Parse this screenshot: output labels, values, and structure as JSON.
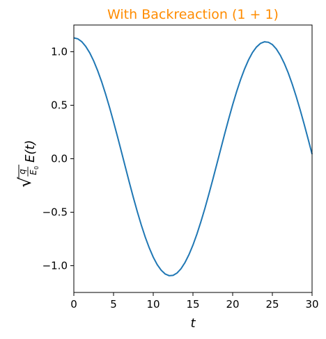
{
  "chart_data": {
    "type": "line",
    "title": "With Backreaction (1 + 1)",
    "title_color": "#ff8c00",
    "xlabel": "t",
    "ylabel": "√(q/E₀) E(t)",
    "ylabel_parts": {
      "sqrt": "√",
      "num": "q",
      "den_main": "E",
      "den_sub": "0",
      "func": "E(t)"
    },
    "xlim": [
      0,
      30
    ],
    "ylim": [
      -1.25,
      1.25
    ],
    "xticks": [
      0,
      5,
      10,
      15,
      20,
      25,
      30
    ],
    "xtick_labels": [
      "0",
      "5",
      "10",
      "15",
      "20",
      "25",
      "30"
    ],
    "yticks": [
      1.0,
      0.5,
      0.0,
      -0.5,
      -1.0
    ],
    "ytick_labels": [
      "1.0",
      "0.5",
      "0.0",
      "−0.5",
      "−1.0"
    ],
    "grid": false,
    "series": [
      {
        "color": "#1f77b4",
        "x": [
          0,
          0.5,
          1,
          1.5,
          2,
          2.5,
          3,
          3.5,
          4,
          4.5,
          5,
          5.5,
          6,
          6.5,
          7,
          7.5,
          8,
          8.5,
          9,
          9.5,
          10,
          10.5,
          11,
          11.5,
          12,
          12.5,
          13,
          13.5,
          14,
          14.5,
          15,
          15.5,
          16,
          16.5,
          17,
          17.5,
          18,
          18.5,
          19,
          19.5,
          20,
          20.5,
          21,
          21.5,
          22,
          22.5,
          23,
          23.5,
          24,
          24.5,
          25,
          25.5,
          26,
          26.5,
          27,
          27.5,
          28,
          28.5,
          29,
          29.5,
          30
        ],
        "y": [
          1.13,
          1.121,
          1.094,
          1.05,
          0.99,
          0.914,
          0.823,
          0.72,
          0.604,
          0.479,
          0.345,
          0.206,
          0.063,
          -0.081,
          -0.225,
          -0.364,
          -0.497,
          -0.621,
          -0.734,
          -0.834,
          -0.92,
          -0.99,
          -1.042,
          -1.077,
          -1.093,
          -1.09,
          -1.068,
          -1.028,
          -0.97,
          -0.896,
          -0.807,
          -0.704,
          -0.589,
          -0.465,
          -0.332,
          -0.194,
          -0.052,
          0.091,
          0.234,
          0.372,
          0.505,
          0.628,
          0.74,
          0.839,
          0.924,
          0.993,
          1.044,
          1.078,
          1.093,
          1.089,
          1.067,
          1.026,
          0.967,
          0.892,
          0.802,
          0.698,
          0.582,
          0.457,
          0.324,
          0.185,
          0.043
        ]
      }
    ]
  }
}
